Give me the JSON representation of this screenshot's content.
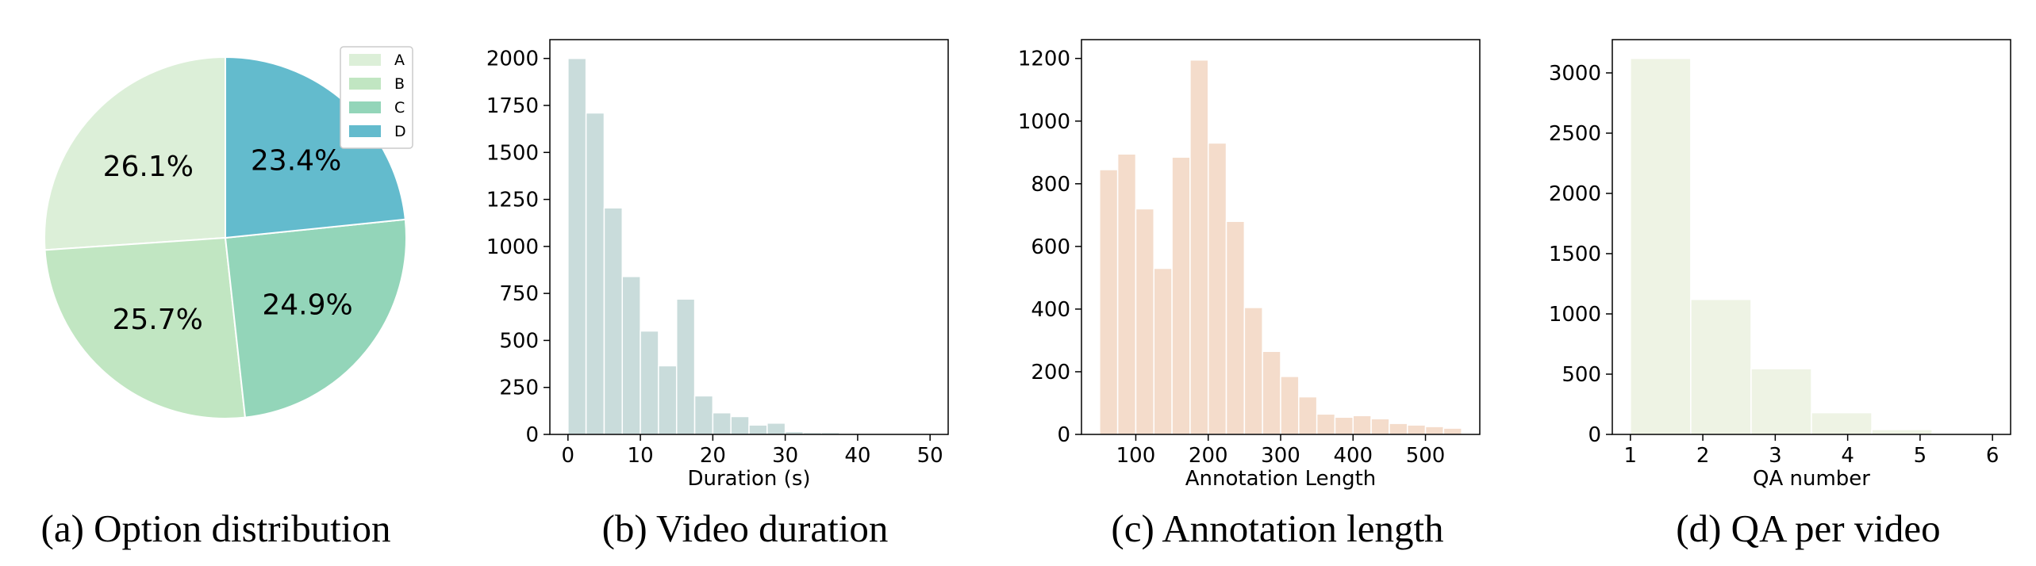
{
  "chart_data": [
    {
      "type": "pie",
      "categories": [
        "A",
        "B",
        "C",
        "D"
      ],
      "values": [
        26.1,
        25.7,
        24.9,
        23.4
      ],
      "labels": [
        "26.1%",
        "25.7%",
        "24.9%",
        "23.4%"
      ],
      "colors": [
        "#dcefd8",
        "#c1e6c2",
        "#93d5b9",
        "#63bbcd"
      ],
      "legend": [
        "A",
        "B",
        "C",
        "D"
      ],
      "legend_position": "top-right",
      "caption": "(a) Option distribution"
    },
    {
      "type": "bar",
      "bin_edges": [
        0,
        2.5,
        5,
        7.5,
        10,
        12.5,
        15,
        17.5,
        20,
        22.5,
        25,
        27.5,
        30,
        32.5,
        35,
        37.5,
        40,
        42.5,
        45,
        47.5,
        50
      ],
      "values": [
        2000,
        1710,
        1205,
        840,
        550,
        365,
        720,
        205,
        115,
        95,
        50,
        60,
        15,
        10,
        10,
        5,
        5,
        3,
        3,
        2
      ],
      "color": "#c9dcdb",
      "xlabel": "Duration (s)",
      "xticks": [
        "0",
        "10",
        "20",
        "30",
        "40",
        "50"
      ],
      "xlim": [
        -2.5,
        52.5
      ],
      "yticks": [
        "0",
        "250",
        "500",
        "750",
        "1000",
        "1250",
        "1500",
        "1750",
        "2000"
      ],
      "ylim": [
        0,
        2100
      ],
      "caption": "(b) Video duration"
    },
    {
      "type": "bar",
      "bin_edges": [
        50,
        75,
        100,
        125,
        150,
        175,
        200,
        225,
        250,
        275,
        300,
        325,
        350,
        375,
        400,
        425,
        450,
        475,
        500,
        525,
        550
      ],
      "values": [
        845,
        895,
        720,
        530,
        885,
        1195,
        930,
        680,
        405,
        265,
        185,
        120,
        65,
        55,
        60,
        50,
        35,
        30,
        25,
        20
      ],
      "color": "#f4dccb",
      "xlabel": "Annotation Length",
      "xticks": [
        "100",
        "200",
        "300",
        "400",
        "500"
      ],
      "xlim": [
        25,
        575
      ],
      "yticks": [
        "0",
        "200",
        "400",
        "600",
        "800",
        "1000",
        "1200"
      ],
      "ylim": [
        0,
        1260
      ],
      "caption": "(c) Annotation length"
    },
    {
      "type": "bar",
      "bin_edges": [
        1,
        1.8333,
        2.6667,
        3.5,
        4.3333,
        5.1667,
        6
      ],
      "values": [
        3120,
        1120,
        545,
        180,
        40,
        5
      ],
      "color": "#eef3e4",
      "xlabel": "QA number",
      "xticks": [
        "1",
        "2",
        "3",
        "4",
        "5",
        "6"
      ],
      "xlim": [
        0.75,
        6.25
      ],
      "yticks": [
        "0",
        "500",
        "1000",
        "1500",
        "2000",
        "2500",
        "3000"
      ],
      "ylim": [
        0,
        3276
      ],
      "caption": "(d) QA per video"
    }
  ]
}
